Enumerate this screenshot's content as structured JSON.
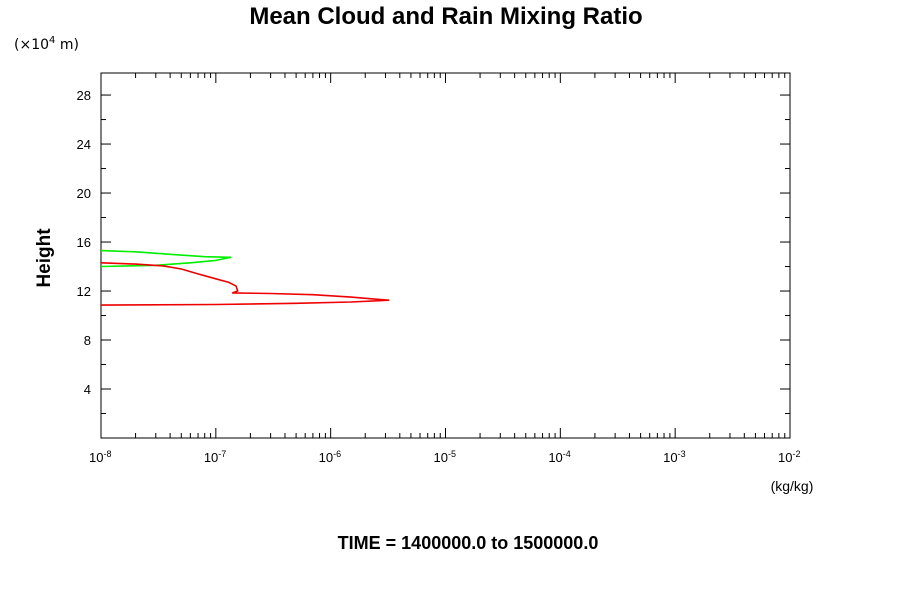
{
  "chart_data": {
    "type": "line",
    "title": "Mean Cloud and Rain Mixing Ratio",
    "y_multiplier_label": "(×10",
    "y_multiplier_exp": "4",
    "y_multiplier_unit": " m)",
    "ylabel": "Height",
    "xlabel": "(kg/kg)",
    "caption": "TIME = 1400000.0 to 1500000.0",
    "x_scale": "log",
    "xlim": [
      1e-08,
      0.01
    ],
    "ylim": [
      0,
      29.8
    ],
    "x_ticks": [
      {
        "base": "10",
        "exp": "-8",
        "value": 1e-08
      },
      {
        "base": "10",
        "exp": "-7",
        "value": 1e-07
      },
      {
        "base": "10",
        "exp": "-6",
        "value": 1e-06
      },
      {
        "base": "10",
        "exp": "-5",
        "value": 1e-05
      },
      {
        "base": "10",
        "exp": "-4",
        "value": 0.0001
      },
      {
        "base": "10",
        "exp": "-3",
        "value": 0.001
      },
      {
        "base": "10",
        "exp": "-2",
        "value": 0.01
      }
    ],
    "y_ticks": [
      "4",
      "8",
      "12",
      "16",
      "20",
      "24",
      "28"
    ],
    "grid": false,
    "series": [
      {
        "color": "#00ee00",
        "points": [
          [
            1e-08,
            15.3
          ],
          [
            2e-08,
            15.2
          ],
          [
            4e-08,
            15.0
          ],
          [
            8e-08,
            14.8
          ],
          [
            1.35e-07,
            14.75
          ],
          [
            1e-07,
            14.5
          ],
          [
            6e-08,
            14.3
          ],
          [
            3e-08,
            14.1
          ],
          [
            1e-08,
            14.0
          ]
        ]
      },
      {
        "color": "#ee0000",
        "points": [
          [
            1e-08,
            14.3
          ],
          [
            2e-08,
            14.2
          ],
          [
            3.5e-08,
            14.05
          ],
          [
            5e-08,
            13.8
          ],
          [
            7e-08,
            13.4
          ],
          [
            1e-07,
            13.0
          ],
          [
            1.3e-07,
            12.7
          ],
          [
            1.5e-07,
            12.4
          ],
          [
            1.55e-07,
            12.0
          ],
          [
            1.4e-07,
            11.85
          ],
          [
            3e-07,
            11.8
          ],
          [
            7e-07,
            11.7
          ],
          [
            1.5e-06,
            11.5
          ],
          [
            3.2e-06,
            11.25
          ],
          [
            1.5e-06,
            11.1
          ],
          [
            5e-07,
            11.0
          ],
          [
            1e-07,
            10.9
          ],
          [
            1e-08,
            10.85
          ]
        ]
      }
    ]
  }
}
